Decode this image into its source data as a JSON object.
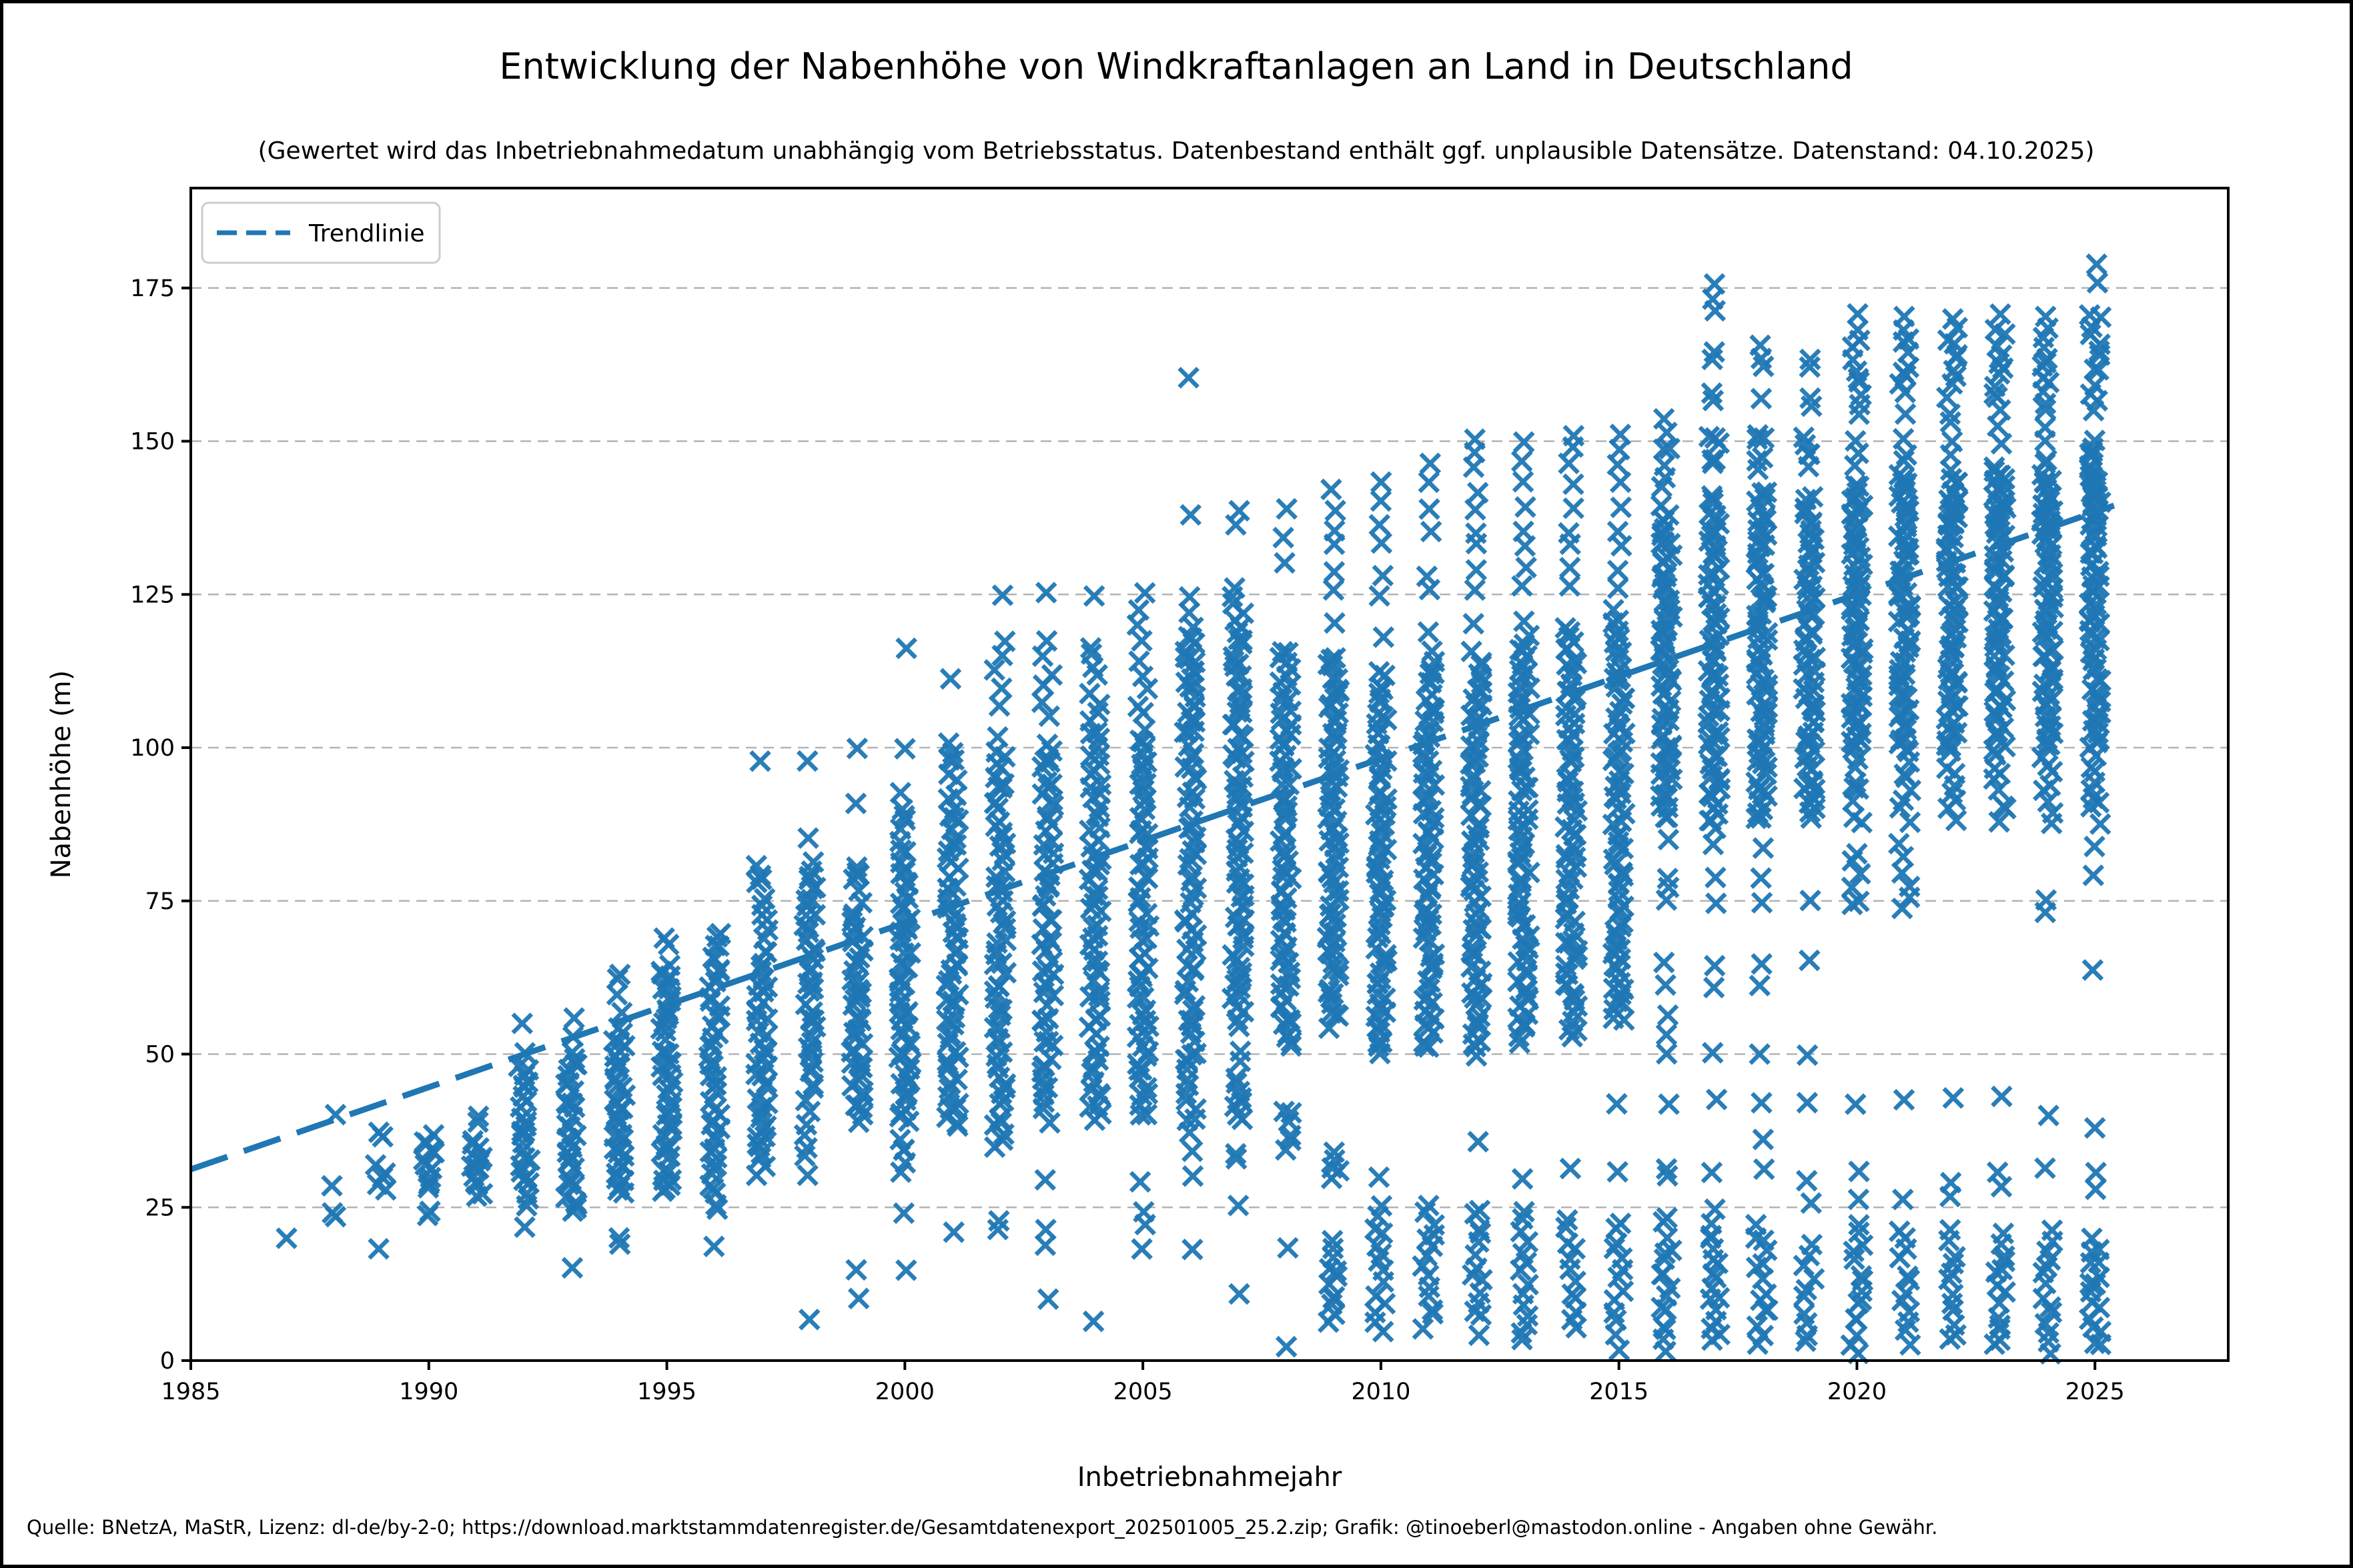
{
  "title": "Entwicklung der Nabenhöhe von Windkraftanlagen an Land in Deutschland",
  "subtitle": "(Gewertet wird das Inbetriebnahmedatum unabhängig vom Betriebsstatus. Datenbestand enthält ggf. unplausible Datensätze. Datenstand: 04.10.2025)",
  "footer": "Quelle: BNetzA, MaStR, Lizenz: dl-de/by-2-0; https://download.marktstammdatenregister.de/Gesamtdatenexport_202501005_25.2.zip; Grafik: @tinoeberl@mastodon.online - Angaben ohne Gewähr.",
  "legend": {
    "trend_label": "Trendlinie",
    "position": "upper left"
  },
  "colors": {
    "marker": "#1f77b4",
    "trendline": "#1f77b4",
    "grid": "#b3b3b3",
    "spine": "#000000",
    "legend_border": "#cccccc",
    "text": "#000000"
  },
  "axes": {
    "x_label": "Inbetriebnahmejahr",
    "y_label": "Nabenhöhe (m)",
    "x_ticks": [
      1985,
      1990,
      1995,
      2000,
      2005,
      2010,
      2015,
      2020,
      2025
    ],
    "y_ticks": [
      0,
      25,
      50,
      75,
      100,
      125,
      150,
      175
    ],
    "xlim": [
      1985,
      2027.8
    ],
    "ylim": [
      0,
      191.3
    ],
    "grid": "horizontal-dashed"
  },
  "chart_data": {
    "type": "scatter",
    "title": "Entwicklung der Nabenhöhe von Windkraftanlagen an Land in Deutschland",
    "xlabel": "Inbetriebnahmejahr",
    "ylabel": "Nabenhöhe (m)",
    "marker": "x",
    "xlim": [
      1985,
      2027.8
    ],
    "ylim": [
      0,
      191.3
    ],
    "legend_position": "upper left",
    "grid": "y-dashed",
    "trendline": {
      "label": "Trendlinie",
      "style": "dashed",
      "x": [
        1985,
        2025.4
      ],
      "y": [
        31.2,
        139.5
      ]
    },
    "note": "dense_bands are vertical ranges [min_m, max_m, approx_count] of overlapping x-markers per commissioning year; points are individually visible markers (hub height in m).",
    "years": [
      {
        "year": 1987,
        "dense_bands": [],
        "points": [
          20
        ]
      },
      {
        "year": 1988,
        "dense_bands": [],
        "points": [
          40,
          28.5,
          24,
          23.5
        ]
      },
      {
        "year": 1989,
        "dense_bands": [
          [
            28,
            32,
            5
          ]
        ],
        "points": [
          37.5,
          36.5,
          18.5
        ]
      },
      {
        "year": 1990,
        "dense_bands": [
          [
            28,
            37,
            12
          ]
        ],
        "points": [
          24,
          23.5
        ]
      },
      {
        "year": 1991,
        "dense_bands": [
          [
            27,
            36,
            14
          ]
        ],
        "points": [
          40,
          39
        ]
      },
      {
        "year": 1992,
        "dense_bands": [
          [
            27,
            48,
            26
          ]
        ],
        "points": [
          55,
          50,
          25,
          21.5
        ]
      },
      {
        "year": 1993,
        "dense_bands": [
          [
            24,
            50,
            34
          ]
        ],
        "points": [
          55.5,
          53,
          15
        ]
      },
      {
        "year": 1994,
        "dense_bands": [
          [
            27,
            54,
            40
          ]
        ],
        "points": [
          63,
          62,
          60,
          57,
          20,
          19
        ]
      },
      {
        "year": 1995,
        "dense_bands": [
          [
            27,
            65,
            48
          ]
        ],
        "points": [
          69,
          68
        ]
      },
      {
        "year": 1996,
        "dense_bands": [
          [
            25,
            70,
            48
          ]
        ],
        "points": [
          19
        ]
      },
      {
        "year": 1997,
        "dense_bands": [
          [
            31,
            67,
            42
          ],
          [
            69,
            81,
            10
          ]
        ],
        "points": [
          98
        ]
      },
      {
        "year": 1998,
        "dense_bands": [
          [
            46,
            81,
            40
          ],
          [
            31,
            44,
            8
          ]
        ],
        "points": [
          98,
          85,
          7
        ]
      },
      {
        "year": 1999,
        "dense_bands": [
          [
            39,
            74,
            45
          ],
          [
            77,
            81,
            6
          ]
        ],
        "points": [
          100,
          91,
          15,
          10.5
        ]
      },
      {
        "year": 2000,
        "dense_bands": [
          [
            39,
            81,
            55
          ],
          [
            82,
            92,
            8
          ],
          [
            31,
            36,
            5
          ]
        ],
        "points": [
          116,
          100,
          24,
          15
        ]
      },
      {
        "year": 2001,
        "dense_bands": [
          [
            38,
            92,
            60
          ],
          [
            95,
            101,
            6
          ]
        ],
        "points": [
          111.5,
          21
        ]
      },
      {
        "year": 2002,
        "dense_bands": [
          [
            35,
            101,
            65
          ],
          [
            107,
            117,
            5
          ]
        ],
        "points": [
          125,
          23,
          21
        ]
      },
      {
        "year": 2003,
        "dense_bands": [
          [
            41,
            101,
            62
          ],
          [
            106,
            117,
            6
          ]
        ],
        "points": [
          125,
          39,
          29.5,
          21,
          19,
          10
        ]
      },
      {
        "year": 2004,
        "dense_bands": [
          [
            40,
            103,
            65
          ],
          [
            104,
            117,
            8
          ]
        ],
        "points": [
          125,
          39,
          6.5
        ]
      },
      {
        "year": 2005,
        "dense_bands": [
          [
            40,
            103,
            68
          ],
          [
            105,
            122,
            8
          ]
        ],
        "points": [
          125,
          29.5,
          24,
          22.5,
          18
        ]
      },
      {
        "year": 2006,
        "dense_bands": [
          [
            38,
            118,
            75
          ],
          [
            102,
            125,
            10
          ]
        ],
        "points": [
          160,
          138,
          55,
          50,
          34,
          30,
          18
        ]
      },
      {
        "year": 2007,
        "dense_bands": [
          [
            55,
            121,
            75
          ],
          [
            39,
            46,
            8
          ],
          [
            122,
            126,
            4
          ]
        ],
        "points": [
          139,
          136,
          50.5,
          49,
          34,
          33,
          25,
          11
        ]
      },
      {
        "year": 2008,
        "dense_bands": [
          [
            52,
            116,
            75
          ],
          [
            35,
            41,
            6
          ]
        ],
        "points": [
          139,
          134,
          130.5,
          55,
          53,
          18,
          2
        ]
      },
      {
        "year": 2009,
        "dense_bands": [
          [
            55,
            115,
            75
          ],
          [
            30,
            34,
            5
          ],
          [
            6,
            19,
            12
          ]
        ],
        "points": [
          142,
          139,
          135,
          133,
          129,
          126,
          120
        ]
      },
      {
        "year": 2010,
        "dense_bands": [
          [
            50,
            112,
            75
          ],
          [
            5,
            25,
            14
          ]
        ],
        "points": [
          143,
          140,
          136,
          133,
          128,
          125,
          118,
          30
        ]
      },
      {
        "year": 2011,
        "dense_bands": [
          [
            51,
            115,
            78
          ],
          [
            6,
            26,
            14
          ]
        ],
        "points": [
          146,
          143,
          139,
          135,
          128,
          125.5,
          119
        ]
      },
      {
        "year": 2012,
        "dense_bands": [
          [
            50,
            115,
            78
          ],
          [
            5,
            25,
            14
          ]
        ],
        "points": [
          150,
          148,
          146,
          142,
          139,
          135,
          133,
          129,
          126,
          120,
          36
        ]
      },
      {
        "year": 2013,
        "dense_bands": [
          [
            52,
            118,
            80
          ],
          [
            3,
            24,
            14
          ]
        ],
        "points": [
          150,
          147,
          143,
          139,
          135,
          133,
          129,
          126,
          121,
          30
        ]
      },
      {
        "year": 2014,
        "dense_bands": [
          [
            53,
            120,
            80
          ],
          [
            5,
            23,
            12
          ]
        ],
        "points": [
          151,
          149,
          146,
          143,
          139,
          135,
          133,
          129,
          126,
          31
        ]
      },
      {
        "year": 2015,
        "dense_bands": [
          [
            55,
            122,
            80
          ],
          [
            5,
            23,
            12
          ]
        ],
        "points": [
          151.5,
          149,
          146,
          143,
          139,
          135,
          133,
          129,
          126,
          42,
          31,
          2
        ]
      },
      {
        "year": 2016,
        "dense_bands": [
          [
            88,
            139,
            72
          ],
          [
            143,
            151,
            6
          ],
          [
            2,
            23,
            16
          ]
        ],
        "points": [
          154,
          85,
          79,
          77,
          75,
          65,
          61,
          56.5,
          53.5,
          50,
          42,
          31,
          30
        ]
      },
      {
        "year": 2017,
        "dense_bands": [
          [
            87,
            141,
            75
          ],
          [
            146,
            151,
            6
          ],
          [
            3,
            22,
            16
          ]
        ],
        "points": [
          175.5,
          173.5,
          171.5,
          164.5,
          163,
          158,
          156.5,
          84,
          79,
          74.5,
          64.5,
          61,
          50,
          42.5,
          31,
          25
        ]
      },
      {
        "year": 2018,
        "dense_bands": [
          [
            88,
            142,
            75
          ],
          [
            146,
            151.5,
            6
          ],
          [
            3,
            22,
            14
          ]
        ],
        "points": [
          166,
          163.5,
          162,
          157,
          84,
          79,
          75,
          65,
          61,
          50,
          42,
          36,
          31
        ]
      },
      {
        "year": 2019,
        "dense_bands": [
          [
            88,
            141,
            72
          ],
          [
            146,
            150.5,
            5
          ],
          [
            3,
            19,
            10
          ]
        ],
        "points": [
          163.5,
          162,
          157,
          156,
          75,
          65,
          50,
          42,
          29,
          26
        ]
      },
      {
        "year": 2020,
        "dense_bands": [
          [
            100,
            143,
            65
          ],
          [
            88,
            101,
            10
          ],
          [
            156,
            168,
            9
          ],
          [
            74,
            83,
            6
          ],
          [
            3,
            22,
            14
          ]
        ],
        "points": [
          170.5,
          154.5,
          150,
          148,
          146,
          42,
          31,
          26,
          1
        ]
      },
      {
        "year": 2021,
        "dense_bands": [
          [
            100,
            145,
            65
          ],
          [
            88,
            99,
            8
          ],
          [
            158,
            168,
            9
          ],
          [
            74,
            84,
            6
          ],
          [
            3,
            21,
            12
          ]
        ],
        "points": [
          170.5,
          154.8,
          150,
          148,
          146.5,
          143.5,
          42.5,
          26
        ]
      },
      {
        "year": 2022,
        "dense_bands": [
          [
            100,
            145,
            65
          ],
          [
            88,
            99,
            8
          ],
          [
            158,
            168,
            9
          ],
          [
            136,
            141,
            5
          ],
          [
            3,
            21,
            12
          ]
        ],
        "points": [
          170.3,
          154.7,
          153,
          150,
          147.5,
          43,
          29,
          27
        ]
      },
      {
        "year": 2023,
        "dense_bands": [
          [
            100,
            146,
            65
          ],
          [
            88,
            99,
            8
          ],
          [
            157,
            168,
            10
          ],
          [
            136,
            141,
            5
          ],
          [
            2,
            21,
            14
          ]
        ],
        "points": [
          170.4,
          155,
          152.5,
          149.8,
          144.5,
          43,
          30.9,
          28.4
        ]
      },
      {
        "year": 2024,
        "dense_bands": [
          [
            100,
            146,
            65
          ],
          [
            88,
            99,
            8
          ],
          [
            157,
            168,
            10
          ],
          [
            136,
            140,
            5
          ],
          [
            2,
            21,
            14
          ]
        ],
        "points": [
          170.3,
          155,
          152,
          150,
          143.5,
          75,
          73,
          40.3,
          31
        ]
      },
      {
        "year": 2025,
        "dense_bands": [
          [
            100,
            150,
            70
          ],
          [
            88,
            99,
            8
          ],
          [
            157,
            171,
            12
          ],
          [
            141,
            145,
            5
          ],
          [
            2,
            20,
            16
          ]
        ],
        "points": [
          179,
          175.8,
          154.6,
          138.5,
          137,
          92,
          84,
          79,
          64,
          37.9,
          30.9,
          28
        ]
      }
    ]
  }
}
